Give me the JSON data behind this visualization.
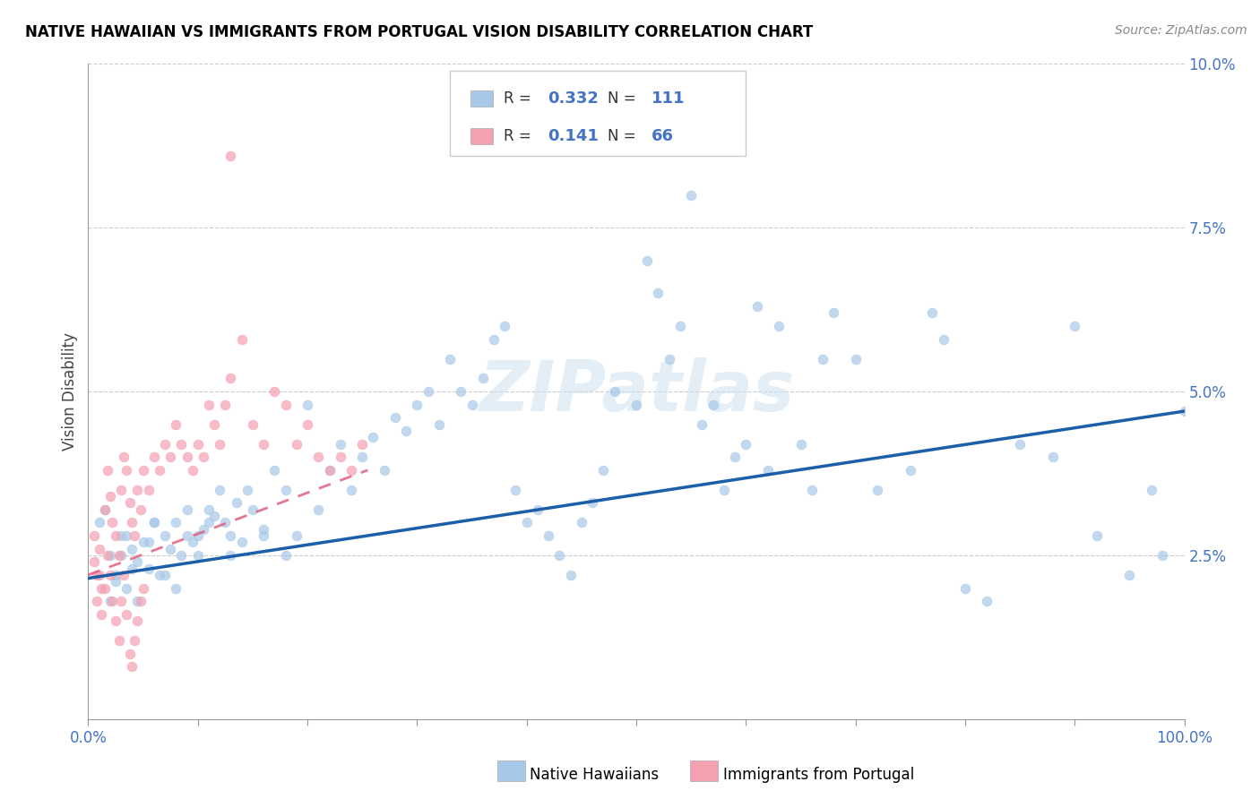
{
  "title": "NATIVE HAWAIIAN VS IMMIGRANTS FROM PORTUGAL VISION DISABILITY CORRELATION CHART",
  "source": "Source: ZipAtlas.com",
  "ylabel": "Vision Disability",
  "xlim": [
    0,
    1.0
  ],
  "ylim": [
    0,
    0.1
  ],
  "color_blue": "#a8c8e8",
  "color_pink": "#f4a0b0",
  "color_blue_line": "#1a5fa8",
  "color_pink_line": "#e06080",
  "watermark": "ZIPatlas",
  "blue_line_x0": 0.0,
  "blue_line_y0": 0.0215,
  "blue_line_x1": 1.0,
  "blue_line_y1": 0.047,
  "pink_line_x0": 0.0,
  "pink_line_y0": 0.022,
  "pink_line_x1": 0.255,
  "pink_line_y1": 0.038,
  "blue_x": [
    0.02,
    0.025,
    0.03,
    0.035,
    0.04,
    0.045,
    0.05,
    0.055,
    0.06,
    0.065,
    0.07,
    0.075,
    0.08,
    0.085,
    0.09,
    0.095,
    0.1,
    0.105,
    0.11,
    0.115,
    0.12,
    0.125,
    0.13,
    0.135,
    0.14,
    0.145,
    0.15,
    0.16,
    0.17,
    0.18,
    0.19,
    0.2,
    0.21,
    0.22,
    0.23,
    0.24,
    0.25,
    0.26,
    0.27,
    0.28,
    0.29,
    0.3,
    0.31,
    0.32,
    0.33,
    0.34,
    0.35,
    0.36,
    0.37,
    0.38,
    0.39,
    0.4,
    0.41,
    0.42,
    0.43,
    0.44,
    0.45,
    0.46,
    0.47,
    0.48,
    0.5,
    0.51,
    0.52,
    0.53,
    0.54,
    0.55,
    0.56,
    0.57,
    0.58,
    0.59,
    0.6,
    0.61,
    0.62,
    0.63,
    0.65,
    0.66,
    0.67,
    0.68,
    0.7,
    0.72,
    0.75,
    0.77,
    0.78,
    0.8,
    0.82,
    0.85,
    0.88,
    0.9,
    0.92,
    0.95,
    0.97,
    0.98,
    1.0,
    0.01,
    0.015,
    0.02,
    0.025,
    0.03,
    0.035,
    0.04,
    0.045,
    0.055,
    0.06,
    0.07,
    0.08,
    0.09,
    0.1,
    0.11,
    0.13,
    0.16,
    0.18
  ],
  "blue_y": [
    0.025,
    0.022,
    0.028,
    0.02,
    0.026,
    0.024,
    0.027,
    0.023,
    0.03,
    0.022,
    0.028,
    0.026,
    0.03,
    0.025,
    0.032,
    0.027,
    0.028,
    0.029,
    0.03,
    0.031,
    0.035,
    0.03,
    0.028,
    0.033,
    0.027,
    0.035,
    0.032,
    0.029,
    0.038,
    0.035,
    0.028,
    0.048,
    0.032,
    0.038,
    0.042,
    0.035,
    0.04,
    0.043,
    0.038,
    0.046,
    0.044,
    0.048,
    0.05,
    0.045,
    0.055,
    0.05,
    0.048,
    0.052,
    0.058,
    0.06,
    0.035,
    0.03,
    0.032,
    0.028,
    0.025,
    0.022,
    0.03,
    0.033,
    0.038,
    0.05,
    0.048,
    0.07,
    0.065,
    0.055,
    0.06,
    0.08,
    0.045,
    0.048,
    0.035,
    0.04,
    0.042,
    0.063,
    0.038,
    0.06,
    0.042,
    0.035,
    0.055,
    0.062,
    0.055,
    0.035,
    0.038,
    0.062,
    0.058,
    0.02,
    0.018,
    0.042,
    0.04,
    0.06,
    0.028,
    0.022,
    0.035,
    0.025,
    0.047,
    0.03,
    0.032,
    0.018,
    0.021,
    0.025,
    0.028,
    0.023,
    0.018,
    0.027,
    0.03,
    0.022,
    0.02,
    0.028,
    0.025,
    0.032,
    0.025,
    0.028,
    0.025
  ],
  "pink_x": [
    0.005,
    0.008,
    0.01,
    0.012,
    0.015,
    0.018,
    0.02,
    0.022,
    0.025,
    0.028,
    0.03,
    0.032,
    0.035,
    0.038,
    0.04,
    0.042,
    0.045,
    0.048,
    0.05,
    0.055,
    0.06,
    0.065,
    0.07,
    0.075,
    0.08,
    0.085,
    0.09,
    0.095,
    0.1,
    0.105,
    0.11,
    0.115,
    0.12,
    0.125,
    0.13,
    0.14,
    0.15,
    0.16,
    0.17,
    0.18,
    0.19,
    0.2,
    0.21,
    0.22,
    0.23,
    0.24,
    0.25,
    0.005,
    0.008,
    0.01,
    0.012,
    0.015,
    0.018,
    0.02,
    0.022,
    0.025,
    0.028,
    0.03,
    0.032,
    0.035,
    0.038,
    0.04,
    0.042,
    0.045,
    0.048,
    0.05,
    0.13
  ],
  "pink_y": [
    0.028,
    0.022,
    0.026,
    0.02,
    0.032,
    0.038,
    0.034,
    0.03,
    0.028,
    0.025,
    0.035,
    0.04,
    0.038,
    0.033,
    0.03,
    0.028,
    0.035,
    0.032,
    0.038,
    0.035,
    0.04,
    0.038,
    0.042,
    0.04,
    0.045,
    0.042,
    0.04,
    0.038,
    0.042,
    0.04,
    0.048,
    0.045,
    0.042,
    0.048,
    0.052,
    0.058,
    0.045,
    0.042,
    0.05,
    0.048,
    0.042,
    0.045,
    0.04,
    0.038,
    0.04,
    0.038,
    0.042,
    0.024,
    0.018,
    0.022,
    0.016,
    0.02,
    0.025,
    0.022,
    0.018,
    0.015,
    0.012,
    0.018,
    0.022,
    0.016,
    0.01,
    0.008,
    0.012,
    0.015,
    0.018,
    0.02,
    0.086
  ]
}
